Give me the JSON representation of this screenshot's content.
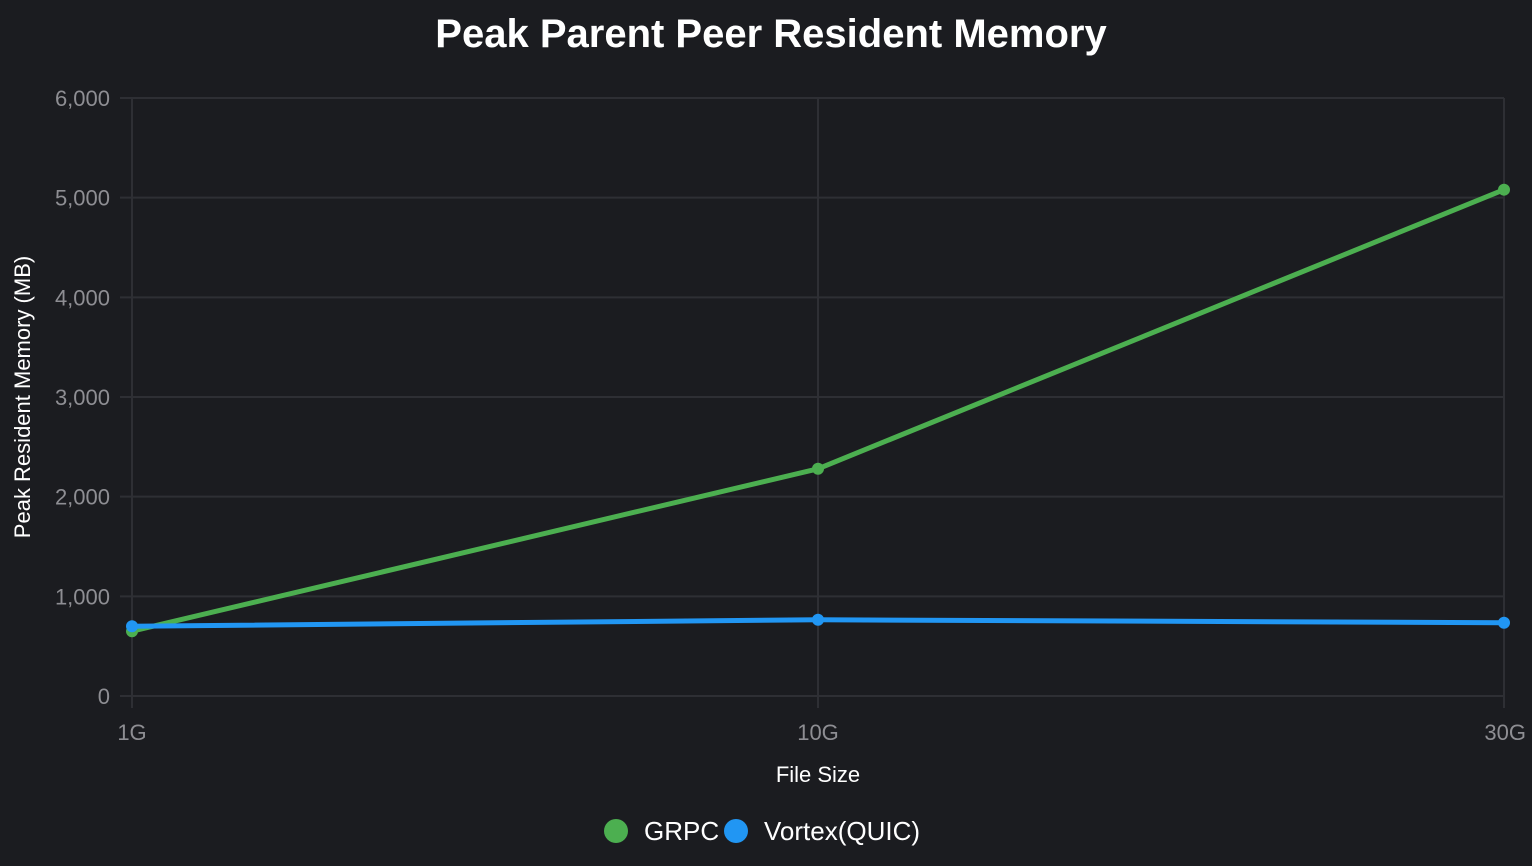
{
  "chart_data": {
    "type": "line",
    "title": "Peak Parent Peer Resident Memory",
    "xlabel": "File Size",
    "ylabel": "Peak Resident Memory (MB)",
    "categories": [
      "1G",
      "10G",
      "30G"
    ],
    "ylim": [
      0,
      6000
    ],
    "yticks": [
      0,
      1000,
      2000,
      3000,
      4000,
      5000,
      6000
    ],
    "ytick_labels": [
      "0",
      "1,000",
      "2,000",
      "3,000",
      "4,000",
      "5,000",
      "6,000"
    ],
    "grid": true,
    "legend_position": "bottom",
    "series": [
      {
        "name": "GRPC",
        "color": "#4caf50",
        "values": [
          650,
          2280,
          5080
        ]
      },
      {
        "name": "Vortex(QUIC)",
        "color": "#2196f3",
        "values": [
          700,
          765,
          735
        ]
      }
    ]
  }
}
